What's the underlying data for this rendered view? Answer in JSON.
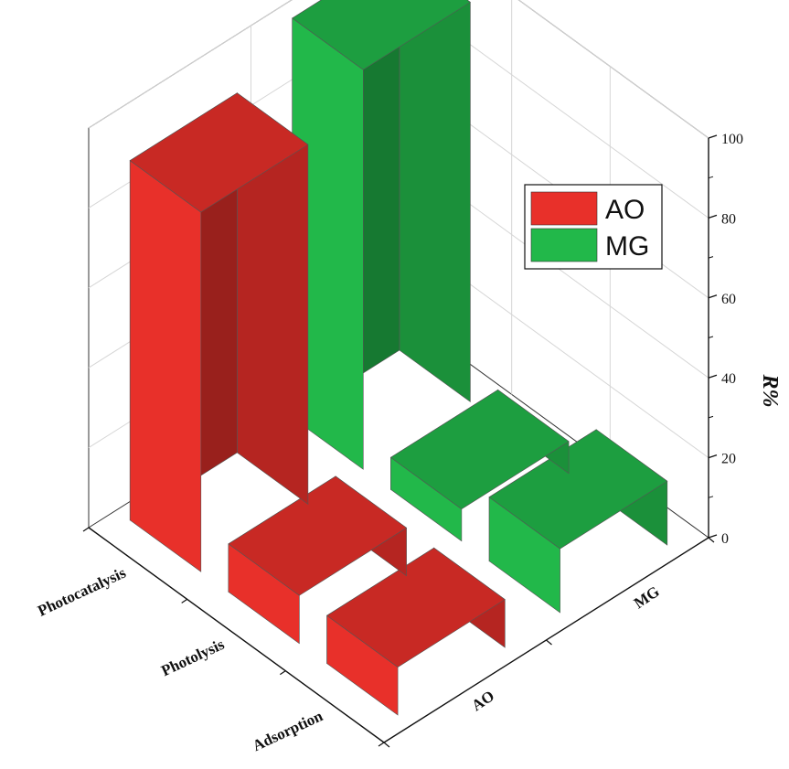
{
  "chart_data": {
    "type": "bar",
    "categories": [
      "Photocatalysis",
      "Photolysis",
      "Adsorption"
    ],
    "series": [
      {
        "name": "AO",
        "values": [
          90,
          12,
          12
        ],
        "color": "#e8302a"
      },
      {
        "name": "MG",
        "values": [
          100,
          8,
          16
        ],
        "color": "#22b84a"
      }
    ],
    "zlabel": "R%",
    "zlim": [
      0,
      100
    ],
    "zticks": [
      0,
      20,
      40,
      60,
      80,
      100
    ],
    "legend_position": "top-right",
    "grid": true
  }
}
